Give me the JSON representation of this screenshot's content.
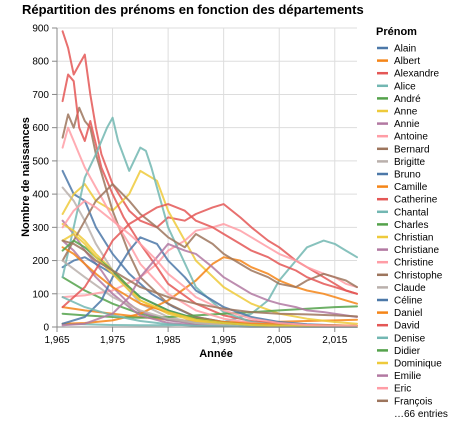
{
  "chart_data": {
    "type": "line",
    "title": "Répartition des prénoms en fonction des départements",
    "xlabel": "Année",
    "ylabel": "Nombre de naissances",
    "xlim": [
      1965,
      2019
    ],
    "ylim": [
      0,
      900
    ],
    "x_ticks": [
      1965,
      1975,
      1985,
      1995,
      2005,
      2015
    ],
    "x_tick_labels": [
      "1,965",
      "1,975",
      "1,985",
      "1,995",
      "2,005",
      "2,015"
    ],
    "y_ticks": [
      0,
      100,
      200,
      300,
      400,
      500,
      600,
      700,
      800,
      900
    ],
    "y_tick_labels": [
      "0",
      "100",
      "200",
      "300",
      "400",
      "500",
      "600",
      "700",
      "800",
      "900"
    ],
    "grid": true,
    "legend": {
      "title": "Prénom",
      "placement": "right",
      "more_entries_label": "…66 entries"
    },
    "series": [
      {
        "name": "Alain",
        "color": "#4c78a8",
        "x": [
          1966,
          1968,
          1970,
          1972,
          1975,
          1978,
          1982,
          1986,
          1990,
          1995,
          2000,
          2005
        ],
        "y": [
          470,
          400,
          380,
          300,
          220,
          160,
          100,
          60,
          30,
          15,
          8,
          5
        ]
      },
      {
        "name": "Albert",
        "color": "#f58518",
        "x": [
          1966,
          1970,
          1975,
          1980,
          1985,
          1990,
          1995,
          2000,
          2005,
          2010,
          2015,
          2019
        ],
        "y": [
          60,
          50,
          40,
          30,
          22,
          18,
          15,
          14,
          16,
          18,
          20,
          22
        ]
      },
      {
        "name": "Alexandre",
        "color": "#e45756",
        "x": [
          1966,
          1967,
          1968,
          1969,
          1970,
          1971,
          1972,
          1973,
          1975,
          1978,
          1980,
          1983,
          1985,
          1988,
          1990,
          1993,
          1995,
          1998,
          2000,
          2003,
          2005,
          2008,
          2010,
          2013,
          2015,
          2017,
          2019
        ],
        "y": [
          890,
          840,
          760,
          790,
          820,
          700,
          600,
          520,
          430,
          350,
          320,
          300,
          330,
          320,
          340,
          360,
          370,
          330,
          300,
          260,
          240,
          200,
          180,
          150,
          130,
          110,
          100
        ]
      },
      {
        "name": "Alice",
        "color": "#72b7b2",
        "x": [
          1966,
          1970,
          1975,
          1980,
          1985,
          1990,
          1995,
          2000,
          2003,
          2005,
          2008,
          2010,
          2013,
          2015,
          2017,
          2019
        ],
        "y": [
          10,
          8,
          6,
          5,
          5,
          8,
          15,
          40,
          80,
          140,
          200,
          240,
          260,
          250,
          230,
          210
        ]
      },
      {
        "name": "André",
        "color": "#54a24b",
        "x": [
          1966,
          1970,
          1975,
          1980,
          1985,
          1990,
          1995,
          2000,
          2005,
          2010,
          2015,
          2019
        ],
        "y": [
          150,
          110,
          70,
          40,
          22,
          12,
          8,
          6,
          4,
          3,
          3,
          2
        ]
      },
      {
        "name": "Anne",
        "color": "#eeca3b",
        "x": [
          1966,
          1968,
          1970,
          1972,
          1975,
          1978,
          1980,
          1983,
          1985,
          1988,
          1990,
          1995,
          2000,
          2005,
          2010,
          2015,
          2019
        ],
        "y": [
          340,
          400,
          430,
          380,
          350,
          400,
          470,
          440,
          350,
          260,
          200,
          120,
          70,
          40,
          25,
          15,
          10
        ]
      },
      {
        "name": "Annie",
        "color": "#b279a2",
        "x": [
          1966,
          1968,
          1970,
          1973,
          1975,
          1978,
          1980,
          1985,
          1990,
          1995,
          2000,
          2005,
          2010,
          2015,
          2019
        ],
        "y": [
          320,
          280,
          230,
          170,
          120,
          70,
          45,
          20,
          10,
          5,
          3,
          2,
          1,
          1,
          1
        ]
      },
      {
        "name": "Antoine",
        "color": "#ff9da6",
        "x": [
          1966,
          1970,
          1975,
          1980,
          1983,
          1985,
          1988,
          1990,
          1993,
          1995,
          1998,
          2000,
          2003,
          2005,
          2008,
          2010,
          2013,
          2015,
          2017,
          2019
        ],
        "y": [
          90,
          95,
          110,
          150,
          190,
          230,
          260,
          290,
          300,
          310,
          290,
          270,
          240,
          220,
          200,
          180,
          160,
          150,
          130,
          120
        ]
      },
      {
        "name": "Bernard",
        "color": "#9d755d",
        "x": [
          1966,
          1967,
          1968,
          1969,
          1970,
          1971,
          1972,
          1975,
          1978,
          1980,
          1985,
          1990,
          1995,
          2000,
          2005,
          2010,
          2015,
          2019
        ],
        "y": [
          570,
          640,
          600,
          660,
          620,
          600,
          520,
          350,
          220,
          150,
          70,
          30,
          15,
          8,
          5,
          3,
          2,
          2
        ]
      },
      {
        "name": "Brigitte",
        "color": "#bab0ac",
        "x": [
          1966,
          1968,
          1970,
          1972,
          1975,
          1978,
          1980,
          1985,
          1990,
          1995,
          2000,
          2005,
          2010,
          2015,
          2019
        ],
        "y": [
          420,
          380,
          320,
          250,
          170,
          110,
          70,
          30,
          12,
          6,
          3,
          2,
          1,
          1,
          1
        ]
      },
      {
        "name": "Bruno",
        "color": "#4c78a8",
        "x": [
          1966,
          1968,
          1970,
          1972,
          1975,
          1978,
          1980,
          1985,
          1990,
          1995,
          2000,
          2005,
          2010,
          2015,
          2019
        ],
        "y": [
          180,
          200,
          210,
          190,
          160,
          120,
          90,
          50,
          25,
          12,
          6,
          4,
          3,
          2,
          2
        ]
      },
      {
        "name": "Camille",
        "color": "#f58518",
        "x": [
          1966,
          1970,
          1975,
          1980,
          1985,
          1990,
          1993,
          1995,
          1998,
          2000,
          2003,
          2005,
          2008,
          2010,
          2013,
          2015,
          2017,
          2019
        ],
        "y": [
          10,
          12,
          20,
          40,
          80,
          140,
          190,
          210,
          200,
          180,
          160,
          140,
          120,
          110,
          100,
          90,
          80,
          70
        ]
      },
      {
        "name": "Catherine",
        "color": "#e45756",
        "x": [
          1966,
          1967,
          1968,
          1969,
          1970,
          1971,
          1972,
          1973,
          1975,
          1977,
          1980,
          1983,
          1985,
          1990,
          1995,
          2000,
          2005,
          2010,
          2015,
          2019
        ],
        "y": [
          680,
          760,
          740,
          600,
          560,
          620,
          550,
          480,
          400,
          330,
          250,
          180,
          130,
          70,
          35,
          18,
          10,
          6,
          4,
          3
        ]
      },
      {
        "name": "Chantal",
        "color": "#72b7b2",
        "x": [
          1966,
          1968,
          1970,
          1972,
          1974,
          1975,
          1976,
          1978,
          1980,
          1981,
          1982,
          1985,
          1990,
          1995,
          2000,
          2005,
          2010,
          2015,
          2019
        ],
        "y": [
          150,
          300,
          450,
          520,
          600,
          630,
          560,
          470,
          540,
          530,
          480,
          300,
          120,
          45,
          15,
          6,
          3,
          2,
          1
        ]
      },
      {
        "name": "Charles",
        "color": "#54a24b",
        "x": [
          1966,
          1970,
          1975,
          1980,
          1985,
          1990,
          1995,
          2000,
          2005,
          2010,
          2015,
          2019
        ],
        "y": [
          40,
          35,
          30,
          28,
          30,
          35,
          40,
          45,
          50,
          55,
          60,
          62
        ]
      },
      {
        "name": "Christian",
        "color": "#eeca3b",
        "x": [
          1966,
          1968,
          1970,
          1972,
          1975,
          1978,
          1980,
          1985,
          1990,
          1995,
          2000,
          2005,
          2010,
          2015,
          2019
        ],
        "y": [
          310,
          290,
          260,
          220,
          170,
          120,
          80,
          40,
          18,
          8,
          4,
          3,
          2,
          2,
          1
        ]
      },
      {
        "name": "Christiane",
        "color": "#b279a2",
        "x": [
          1966,
          1968,
          1970,
          1972,
          1975,
          1978,
          1980,
          1985,
          1990,
          1995,
          2000,
          2005,
          2010,
          2015,
          2019
        ],
        "y": [
          260,
          230,
          190,
          150,
          100,
          60,
          35,
          12,
          5,
          2,
          1,
          1,
          1,
          1,
          1
        ]
      },
      {
        "name": "Christine",
        "color": "#ff9da6",
        "x": [
          1966,
          1967,
          1968,
          1969,
          1970,
          1972,
          1975,
          1978,
          1980,
          1985,
          1990,
          1995,
          2000,
          2005,
          2010,
          2015,
          2019
        ],
        "y": [
          540,
          600,
          560,
          520,
          480,
          420,
          330,
          250,
          190,
          100,
          50,
          25,
          12,
          6,
          4,
          3,
          2
        ]
      },
      {
        "name": "Christophe",
        "color": "#9d755d",
        "x": [
          1966,
          1968,
          1970,
          1972,
          1975,
          1978,
          1980,
          1983,
          1985,
          1988,
          1990,
          1993,
          1995,
          1998,
          2000,
          2003,
          2005,
          2008,
          2010,
          2013,
          2015,
          2017,
          2019
        ],
        "y": [
          200,
          260,
          320,
          380,
          430,
          380,
          340,
          300,
          270,
          240,
          280,
          250,
          220,
          190,
          170,
          150,
          130,
          120,
          140,
          160,
          150,
          140,
          120
        ]
      },
      {
        "name": "Claude",
        "color": "#bab0ac",
        "x": [
          1966,
          1970,
          1975,
          1980,
          1985,
          1990,
          1995,
          2000,
          2005,
          2010,
          2015,
          2019
        ],
        "y": [
          200,
          150,
          90,
          50,
          25,
          12,
          6,
          3,
          2,
          1,
          1,
          1
        ]
      },
      {
        "name": "Céline",
        "color": "#4c78a8",
        "x": [
          1966,
          1970,
          1973,
          1975,
          1978,
          1980,
          1983,
          1985,
          1988,
          1990,
          1993,
          1995,
          2000,
          2005,
          2010,
          2015,
          2019
        ],
        "y": [
          10,
          30,
          80,
          150,
          230,
          270,
          250,
          200,
          150,
          110,
          80,
          60,
          30,
          15,
          8,
          5,
          3
        ]
      },
      {
        "name": "Daniel",
        "color": "#f58518",
        "x": [
          1966,
          1968,
          1970,
          1972,
          1975,
          1978,
          1980,
          1985,
          1990,
          1995,
          2000,
          2005,
          2010,
          2015,
          2019
        ],
        "y": [
          240,
          220,
          190,
          160,
          120,
          90,
          70,
          45,
          25,
          15,
          10,
          8,
          6,
          5,
          4
        ]
      },
      {
        "name": "David",
        "color": "#e45756",
        "x": [
          1966,
          1970,
          1973,
          1975,
          1978,
          1980,
          1983,
          1985,
          1988,
          1990,
          1993,
          1995,
          1998,
          2000,
          2003,
          2005,
          2008,
          2010,
          2013,
          2015,
          2017,
          2019
        ],
        "y": [
          60,
          120,
          200,
          260,
          310,
          330,
          360,
          370,
          350,
          320,
          300,
          280,
          250,
          230,
          210,
          190,
          170,
          150,
          130,
          120,
          110,
          100
        ]
      },
      {
        "name": "Denise",
        "color": "#72b7b2",
        "x": [
          1966,
          1970,
          1975,
          1980,
          1985,
          1990,
          1995,
          2000,
          2005,
          2010,
          2015,
          2019
        ],
        "y": [
          90,
          60,
          35,
          18,
          8,
          4,
          2,
          1,
          1,
          1,
          1,
          1
        ]
      },
      {
        "name": "Didier",
        "color": "#54a24b",
        "x": [
          1966,
          1968,
          1970,
          1972,
          1975,
          1978,
          1980,
          1985,
          1990,
          1995,
          2000,
          2005,
          2010,
          2015,
          2019
        ],
        "y": [
          230,
          260,
          240,
          210,
          170,
          120,
          90,
          50,
          25,
          12,
          6,
          4,
          3,
          2,
          2
        ]
      },
      {
        "name": "Dominique",
        "color": "#eeca3b",
        "x": [
          1966,
          1968,
          1970,
          1972,
          1975,
          1978,
          1980,
          1985,
          1990,
          1995,
          2000,
          2005,
          2010,
          2015,
          2019
        ],
        "y": [
          260,
          280,
          250,
          210,
          160,
          110,
          80,
          45,
          22,
          12,
          6,
          4,
          3,
          2,
          2
        ]
      },
      {
        "name": "Emilie",
        "color": "#b279a2",
        "x": [
          1966,
          1970,
          1975,
          1978,
          1980,
          1983,
          1985,
          1988,
          1990,
          1993,
          1995,
          1998,
          2000,
          2003,
          2005,
          2008,
          2010,
          2013,
          2015,
          2017,
          2019
        ],
        "y": [
          5,
          10,
          40,
          90,
          150,
          210,
          250,
          230,
          220,
          180,
          150,
          120,
          100,
          80,
          70,
          60,
          50,
          45,
          40,
          35,
          30
        ]
      },
      {
        "name": "Eric",
        "color": "#ff9da6",
        "x": [
          1966,
          1968,
          1970,
          1972,
          1975,
          1978,
          1980,
          1983,
          1985,
          1988,
          1990,
          1995,
          2000,
          2005,
          2010,
          2015,
          2019
        ],
        "y": [
          300,
          350,
          380,
          360,
          320,
          280,
          250,
          200,
          160,
          120,
          90,
          50,
          25,
          12,
          6,
          4,
          3
        ]
      },
      {
        "name": "François",
        "color": "#9d755d",
        "x": [
          1966,
          1968,
          1970,
          1972,
          1975,
          1978,
          1980,
          1985,
          1990,
          1995,
          2000,
          2005,
          2010,
          2015,
          2019
        ],
        "y": [
          260,
          250,
          230,
          200,
          170,
          140,
          120,
          90,
          70,
          55,
          45,
          40,
          38,
          35,
          32
        ]
      }
    ]
  }
}
